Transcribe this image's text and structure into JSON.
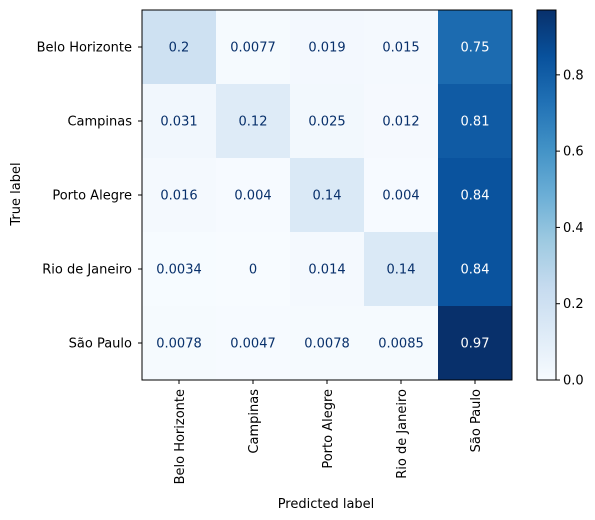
{
  "chart_data": {
    "type": "heatmap",
    "title": "",
    "xlabel": "Predicted label",
    "ylabel": "True label",
    "rows": [
      "Belo Horizonte",
      "Campinas",
      "Porto Alegre",
      "Rio de Janeiro",
      "São Paulo"
    ],
    "columns": [
      "Belo Horizonte",
      "Campinas",
      "Porto Alegre",
      "Rio de Janeiro",
      "São Paulo"
    ],
    "values": [
      [
        0.2,
        0.0077,
        0.019,
        0.015,
        0.75
      ],
      [
        0.031,
        0.12,
        0.025,
        0.012,
        0.81
      ],
      [
        0.016,
        0.004,
        0.14,
        0.004,
        0.84
      ],
      [
        0.0034,
        0,
        0.014,
        0.14,
        0.84
      ],
      [
        0.0078,
        0.0047,
        0.0078,
        0.0085,
        0.97
      ]
    ],
    "labels": [
      [
        "0.2",
        "0.0077",
        "0.019",
        "0.015",
        "0.75"
      ],
      [
        "0.031",
        "0.12",
        "0.025",
        "0.012",
        "0.81"
      ],
      [
        "0.016",
        "0.004",
        "0.14",
        "0.004",
        "0.84"
      ],
      [
        "0.0034",
        "0",
        "0.014",
        "0.14",
        "0.84"
      ],
      [
        "0.0078",
        "0.0047",
        "0.0078",
        "0.0085",
        "0.97"
      ]
    ],
    "colormap": "Blues",
    "colorbar": {
      "range": [
        0,
        0.97
      ],
      "ticks": [
        0.0,
        0.2,
        0.4,
        0.6,
        0.8
      ],
      "tick_labels": [
        "0.0",
        "0.2",
        "0.4",
        "0.6",
        "0.8"
      ]
    }
  }
}
